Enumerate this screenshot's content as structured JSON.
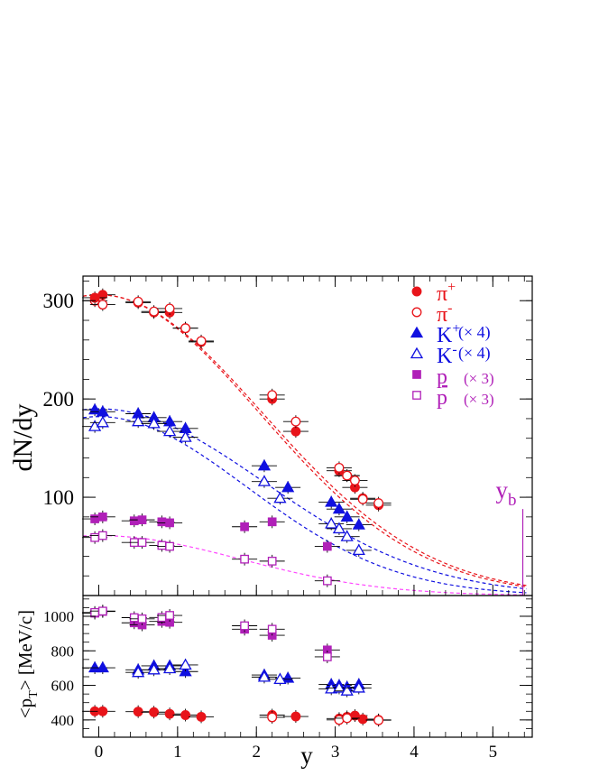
{
  "chart_data": {
    "type": "scatter",
    "title": "",
    "xlabel": "y",
    "colors": {
      "pion": "#e8141a",
      "kaon": "#1010e0",
      "proton": "#b020b8",
      "axis": "#000000"
    },
    "x_axis": {
      "range": [
        -0.2,
        5.5
      ],
      "ticks": [
        0,
        1,
        2,
        3,
        4,
        5
      ],
      "tick_labels": [
        "0",
        "1",
        "2",
        "3",
        "4",
        "5"
      ]
    },
    "beam_rapidity": {
      "label": "y",
      "sub": "b",
      "x": 5.38,
      "y_top": 88
    },
    "top_panel": {
      "ylabel": "dN/dy",
      "ylim": [
        0,
        325
      ],
      "ticks": [
        100,
        200,
        300
      ],
      "tick_labels": [
        "100",
        "200",
        "300"
      ],
      "legend": [
        {
          "label": "π",
          "sup": "+",
          "suffix": "",
          "marker": "circle",
          "filled": true,
          "color": "#e8141a"
        },
        {
          "label": "π",
          "sup": "-",
          "suffix": "",
          "marker": "circle",
          "filled": false,
          "color": "#e8141a"
        },
        {
          "label": "K",
          "sup": "+",
          "suffix": "(× 4)",
          "marker": "triangle",
          "filled": true,
          "color": "#1010e0"
        },
        {
          "label": "K",
          "sup": "-",
          "suffix": "(× 4)",
          "marker": "triangle",
          "filled": false,
          "color": "#1010e0"
        },
        {
          "label": "p",
          "sup": "",
          "suffix": "(× 3)",
          "marker": "square",
          "filled": true,
          "color": "#b020b8",
          "overline": true
        },
        {
          "label": "p",
          "sup": "",
          "suffix": "(× 3)",
          "marker": "square",
          "filled": false,
          "color": "#b020b8"
        }
      ],
      "series": [
        {
          "name": "π+",
          "marker": "circle",
          "filled": true,
          "color": "#e8141a",
          "x": [
            0.05,
            0.5,
            0.7,
            0.9,
            1.1,
            1.3,
            2.2,
            2.5,
            3.05,
            3.15,
            3.25,
            3.35,
            3.55
          ],
          "y": [
            306,
            298,
            288,
            288,
            272,
            258,
            200,
            167,
            127,
            122,
            110,
            99,
            92
          ]
        },
        {
          "name": "π-",
          "marker": "circle",
          "filled": false,
          "color": "#e8141a",
          "x": [
            -0.05,
            0.05,
            0.5,
            0.7,
            0.9,
            1.1,
            1.3,
            2.2,
            2.5,
            3.05,
            3.15,
            3.25,
            3.35,
            3.55
          ],
          "y": [
            300,
            296,
            299,
            289,
            292,
            272,
            259,
            204,
            177,
            130,
            122,
            117,
            98,
            94
          ]
        },
        {
          "name": "π+ (ref)",
          "marker": "circle",
          "filled": true,
          "color": "#e8141a",
          "x": [
            -0.05
          ],
          "y": [
            303
          ]
        },
        {
          "name": "K+ (×4)",
          "marker": "triangle",
          "filled": true,
          "color": "#1010e0",
          "x": [
            -0.05,
            0.05,
            0.5,
            0.7,
            0.9,
            1.1,
            2.1,
            2.4,
            2.95,
            3.05,
            3.15,
            3.3
          ],
          "y": [
            189,
            187,
            185,
            181,
            177,
            170,
            132,
            110,
            95,
            88,
            80,
            72
          ]
        },
        {
          "name": "K- (×4)",
          "marker": "triangle",
          "filled": false,
          "color": "#1010e0",
          "x": [
            -0.05,
            0.05,
            0.5,
            0.7,
            0.9,
            1.1,
            2.1,
            2.3,
            2.95,
            3.05,
            3.15,
            3.3
          ],
          "y": [
            172,
            176,
            177,
            175,
            167,
            161,
            116,
            99,
            73,
            68,
            60,
            46
          ]
        },
        {
          "name": "p (×3)",
          "marker": "square",
          "filled": true,
          "color": "#b020b8",
          "x": [
            -0.05,
            0.05,
            0.45,
            0.55,
            0.8,
            0.9,
            1.85,
            2.2,
            2.9
          ],
          "y": [
            78,
            80,
            76,
            77,
            75,
            74,
            70,
            75,
            50
          ]
        },
        {
          "name": "p̄ (×3)",
          "marker": "square",
          "filled": false,
          "color": "#b020b8",
          "x": [
            -0.05,
            0.05,
            0.45,
            0.55,
            0.8,
            0.9,
            1.85,
            2.2,
            2.9
          ],
          "y": [
            59,
            61,
            54,
            54,
            51,
            50,
            37,
            35,
            15
          ]
        }
      ],
      "curves": [
        {
          "name": "π+ fit",
          "color": "#e8141a",
          "amplitude": 306,
          "sigma": 2.04
        },
        {
          "name": "π- fit",
          "color": "#e8141a",
          "amplitude": 306,
          "sigma": 2.08
        },
        {
          "name": "K+ fit",
          "color": "#1010e0",
          "amplitude": 190,
          "sigma": 2.1
        },
        {
          "name": "K- fit",
          "color": "#1010e0",
          "amplitude": 182,
          "sigma": 1.88
        },
        {
          "name": "p̄ fit",
          "color": "#ff44ff",
          "amplitude": 61,
          "sigma": 1.8
        }
      ]
    },
    "bottom_panel": {
      "ylabel": "<p",
      "ylabel_sub": "T",
      "ylabel_tail": "> [MeV/c]",
      "ylim": [
        300,
        1120
      ],
      "ticks": [
        400,
        600,
        800,
        1000
      ],
      "tick_labels": [
        "400",
        "600",
        "800",
        "1000"
      ],
      "series": [
        {
          "name": "π <pT>",
          "marker": "circle",
          "filled": true,
          "color": "#e8141a",
          "x": [
            -0.05,
            0.05,
            0.5,
            0.7,
            0.9,
            1.1,
            1.3,
            2.2,
            2.5,
            3.05,
            3.15,
            3.25,
            3.35,
            3.55
          ],
          "y": [
            450,
            450,
            448,
            445,
            435,
            428,
            418,
            428,
            420,
            408,
            418,
            425,
            405,
            400
          ]
        },
        {
          "name": "π- <pT>",
          "marker": "circle",
          "filled": false,
          "color": "#e8141a",
          "x": [
            2.2,
            3.05,
            3.15,
            3.55
          ],
          "y": [
            415,
            400,
            410,
            398
          ]
        },
        {
          "name": "K+ <pT>",
          "marker": "triangle",
          "filled": true,
          "color": "#1010e0",
          "x": [
            -0.05,
            0.05,
            0.5,
            0.7,
            0.9,
            1.1,
            2.1,
            2.4,
            2.95,
            3.05,
            3.15,
            3.3
          ],
          "y": [
            702,
            702,
            690,
            713,
            713,
            680,
            660,
            642,
            605,
            600,
            590,
            605
          ]
        },
        {
          "name": "K- <pT>",
          "marker": "triangle",
          "filled": false,
          "color": "#1010e0",
          "x": [
            0.5,
            0.7,
            0.9,
            1.1,
            2.1,
            2.3,
            2.95,
            3.05,
            3.15,
            3.3
          ],
          "y": [
            675,
            690,
            697,
            718,
            648,
            635,
            580,
            585,
            568,
            585
          ]
        },
        {
          "name": "p <pT>",
          "marker": "square",
          "filled": true,
          "color": "#b020b8",
          "x": [
            -0.05,
            0.05,
            0.45,
            0.55,
            0.8,
            0.9,
            1.85,
            2.2,
            2.9
          ],
          "y": [
            1018,
            1028,
            962,
            950,
            970,
            965,
            925,
            890,
            805
          ]
        },
        {
          "name": "p̄ <pT>",
          "marker": "square",
          "filled": false,
          "color": "#b020b8",
          "x": [
            -0.05,
            0.05,
            0.45,
            0.55,
            0.8,
            0.9,
            1.85,
            2.2,
            2.9
          ],
          "y": [
            1022,
            1030,
            992,
            985,
            993,
            1005,
            945,
            925,
            765
          ]
        }
      ]
    }
  }
}
